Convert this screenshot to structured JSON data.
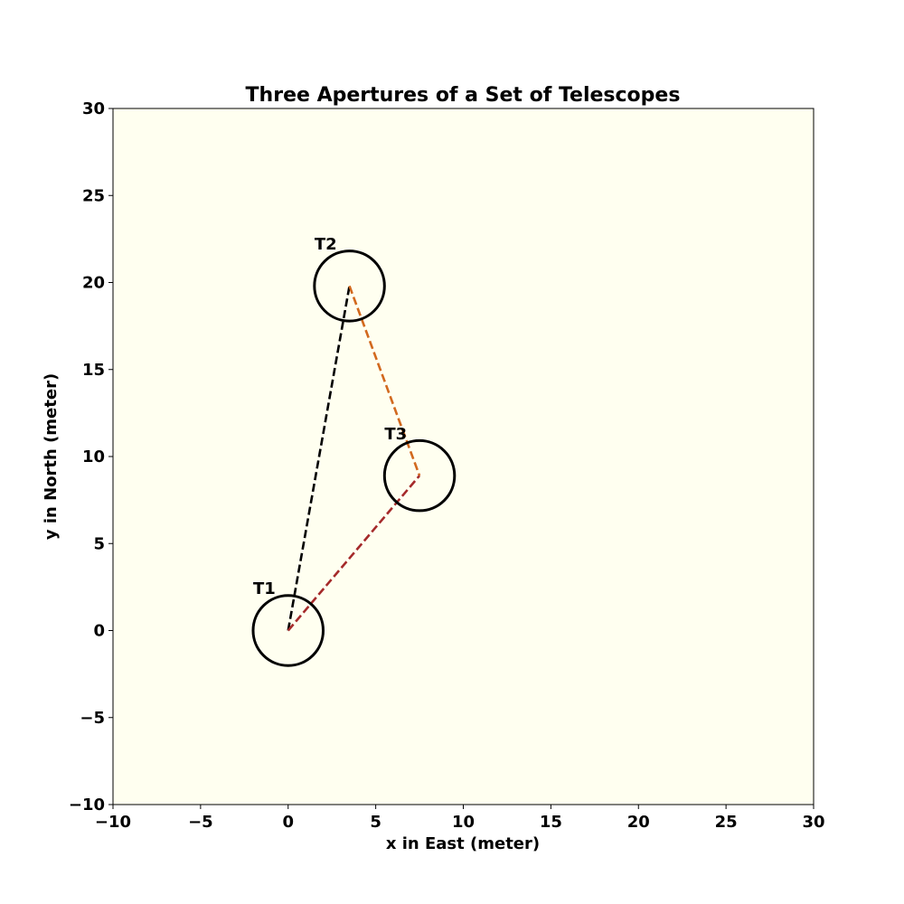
{
  "chart_data": {
    "type": "scatter",
    "title": "Three Apertures of a Set of Telescopes",
    "xlabel": "x in East (meter)",
    "ylabel": "y in North (meter)",
    "xlim": [
      -10,
      30
    ],
    "ylim": [
      -10,
      30
    ],
    "xticks": [
      -10,
      -5,
      0,
      5,
      10,
      15,
      20,
      25,
      30
    ],
    "yticks": [
      -10,
      -5,
      0,
      5,
      10,
      15,
      20,
      25,
      30
    ],
    "grid": false,
    "background_color": "#fffff0",
    "telescopes": [
      {
        "name": "T1",
        "x": 0,
        "y": 0,
        "radius": 2
      },
      {
        "name": "T2",
        "x": 3.5,
        "y": 19.8,
        "radius": 2
      },
      {
        "name": "T3",
        "x": 7.5,
        "y": 8.9,
        "radius": 2
      }
    ],
    "baselines": [
      {
        "from": "T1",
        "to": "T2",
        "color": "#000000",
        "style": "dashed"
      },
      {
        "from": "T2",
        "to": "T3",
        "color": "#d2691e",
        "style": "dashed"
      },
      {
        "from": "T1",
        "to": "T3",
        "color": "#a52a2a",
        "style": "dashed"
      }
    ]
  }
}
